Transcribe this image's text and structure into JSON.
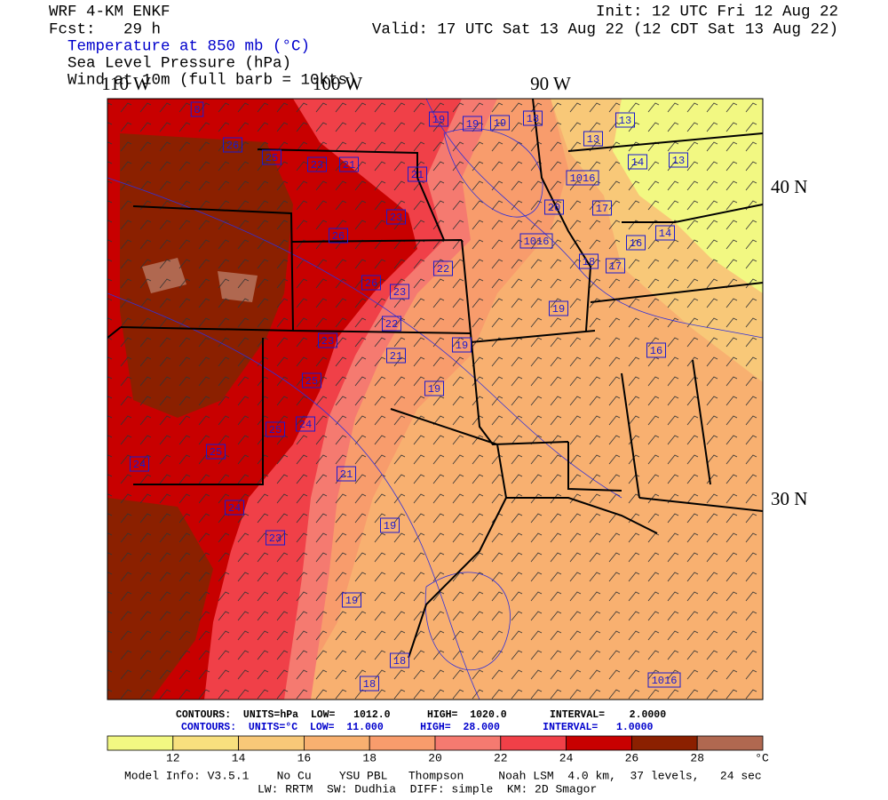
{
  "header": {
    "model": "WRF 4-KM ENKF",
    "forecast": "Fcst:   29 h",
    "init": "Init: 12 UTC Fri 12 Aug 22",
    "valid": "Valid: 17 UTC Sat 13 Aug 22 (12 CDT Sat 13 Aug 22)"
  },
  "fields": [
    "Temperature at 850 mb (°C)",
    "Sea Level Pressure (hPa)",
    "Wind at 10m (full barb = 10kts)"
  ],
  "map": {
    "lon_labels": [
      "110 W",
      "100 W",
      "90 W"
    ],
    "lat_labels": [
      "40 N",
      "30 N"
    ],
    "contour_labels": [
      "8",
      "26",
      "25",
      "23",
      "21",
      "21",
      "19",
      "19",
      "19",
      "18",
      "13",
      "13",
      "14",
      "13",
      "1016",
      "20",
      "17",
      "23",
      "26",
      "1016",
      "16",
      "14",
      "22",
      "26",
      "23",
      "18",
      "17",
      "19",
      "22",
      "23",
      "19",
      "21",
      "16",
      "25",
      "19",
      "24",
      "25",
      "25",
      "24",
      "21",
      "24",
      "19",
      "23",
      "19",
      "18",
      "18",
      "1016"
    ]
  },
  "contour_info": [
    "CONTOURS:  UNITS=hPa  LOW=   1012.0      HIGH=  1020.0       INTERVAL=    2.0000",
    "CONTOURS:  UNITS=°C  LOW=  11.000      HIGH=  28.000       INTERVAL=   1.0000"
  ],
  "colorbar": {
    "ticks": [
      12,
      14,
      16,
      18,
      20,
      22,
      24,
      26,
      28
    ],
    "unit": "°C",
    "colors": [
      "#f2f882",
      "#f8e07e",
      "#f8c878",
      "#f8b070",
      "#f89c6c",
      "#f57a70",
      "#f04048",
      "#c80000",
      "#8b2000",
      "#b06850"
    ]
  },
  "model_info": [
    "Model Info: V3.5.1    No Cu    YSU PBL   Thompson     Noah LSM  4.0 km,  37 levels,   24 sec",
    "LW: RRTM  SW: Dudhia  DIFF: simple  KM: 2D Smagor"
  ]
}
